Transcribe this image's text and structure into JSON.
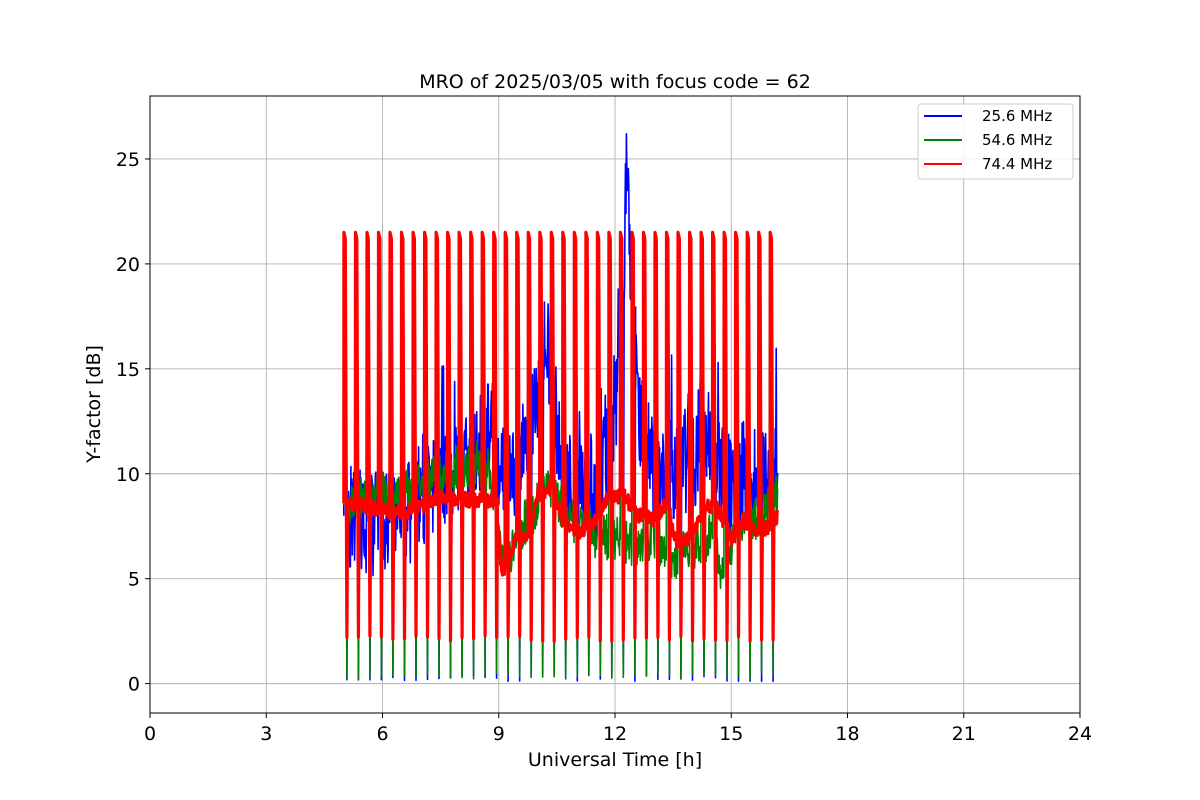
{
  "chart_data": {
    "type": "line",
    "title": "MRO of 2025/03/05 with focus code = 62",
    "xlabel": "Universal Time [h]",
    "ylabel": "Y-factor [dB]",
    "xlim": [
      0,
      24
    ],
    "ylim": [
      -1.4,
      28
    ],
    "xticks": [
      "0",
      "3",
      "6",
      "9",
      "12",
      "15",
      "18",
      "21",
      "24"
    ],
    "yticks": [
      "0",
      "5",
      "10",
      "15",
      "20",
      "25"
    ],
    "grid": true,
    "legend_position": "top-right",
    "calibration_spikes": {
      "start_h": 5.0,
      "end_h": 16.0,
      "count": 38,
      "high_db": 21.5,
      "low_db": 0.2
    },
    "series": [
      {
        "name": "25.6 MHz",
        "color": "#0000ff",
        "x": [
          5.0,
          5.5,
          6.0,
          6.5,
          7.0,
          7.5,
          8.0,
          8.5,
          8.8,
          9.0,
          9.5,
          9.8,
          10.0,
          10.2,
          10.5,
          10.8,
          11.0,
          11.5,
          11.8,
          12.0,
          12.2,
          12.3,
          12.4,
          12.6,
          12.8,
          13.0,
          13.3,
          13.6,
          14.0,
          14.2,
          14.5,
          14.8,
          15.0,
          15.3,
          15.6,
          15.9,
          16.2
        ],
        "values": [
          8.0,
          7.8,
          7.5,
          8.0,
          8.5,
          9.5,
          10.5,
          11.5,
          12.0,
          10.5,
          10.0,
          12.0,
          14.0,
          16.5,
          12.5,
          10.0,
          9.0,
          9.5,
          11.5,
          13.0,
          18.5,
          24.5,
          19.0,
          12.5,
          11.5,
          10.0,
          9.5,
          10.5,
          10.5,
          12.0,
          11.5,
          10.0,
          9.0,
          10.0,
          10.0,
          10.5,
          11.0
        ]
      },
      {
        "name": "54.6 MHz",
        "color": "#008000",
        "x": [
          5.0,
          5.5,
          6.0,
          6.5,
          7.0,
          7.5,
          8.0,
          8.5,
          8.8,
          9.0,
          9.3,
          9.6,
          10.0,
          10.3,
          10.6,
          11.0,
          11.5,
          12.0,
          12.5,
          13.0,
          13.5,
          14.0,
          14.5,
          14.8,
          15.0,
          15.5,
          16.0,
          16.2
        ],
        "values": [
          8.5,
          8.8,
          9.0,
          9.0,
          9.5,
          10.0,
          10.3,
          10.5,
          10.0,
          6.5,
          6.0,
          7.5,
          8.5,
          9.5,
          8.5,
          7.5,
          7.0,
          7.0,
          6.5,
          7.0,
          6.0,
          6.5,
          7.0,
          5.0,
          6.5,
          7.5,
          8.5,
          9.0
        ]
      },
      {
        "name": "74.4 MHz",
        "color": "#ff0000",
        "x": [
          5.0,
          5.5,
          6.0,
          6.5,
          7.0,
          7.5,
          8.0,
          8.5,
          8.9,
          9.1,
          9.4,
          9.8,
          10.0,
          10.4,
          10.7,
          11.0,
          11.4,
          11.8,
          12.2,
          12.6,
          13.0,
          13.3,
          13.6,
          14.0,
          14.3,
          14.6,
          15.0,
          15.3,
          15.6,
          16.0,
          16.2
        ],
        "values": [
          8.6,
          8.5,
          8.3,
          8.1,
          8.4,
          8.9,
          8.8,
          8.7,
          8.8,
          5.2,
          6.8,
          7.0,
          9.0,
          9.4,
          7.5,
          7.2,
          7.5,
          8.8,
          9.0,
          8.0,
          7.8,
          8.5,
          6.5,
          7.0,
          8.3,
          8.6,
          6.8,
          7.8,
          7.2,
          7.5,
          8.0
        ]
      }
    ]
  }
}
